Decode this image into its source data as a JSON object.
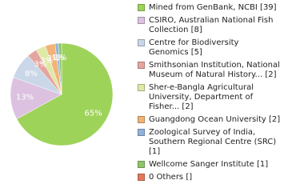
{
  "chart_data": {
    "type": "pie",
    "categories": [
      "Mined from GenBank, NCBI [39]",
      "CSIRO, Australian National Fish Collection [8]",
      "Centre for Biodiversity Genomics [5]",
      "Smithsonian Institution, National Museum of Natural History... [2]",
      "Sher-e-Bangla Agricultural University, Department of Fisher... [2]",
      "Guangdong Ocean University [2]",
      "Zoological Survey of India, Southern Regional Centre (SRC) [1]",
      "Wellcome Sanger Institute [1]",
      "0 Others []"
    ],
    "values": [
      65,
      13,
      8,
      3,
      3,
      3,
      1,
      1,
      0
    ],
    "value_labels": [
      "65%",
      "13%",
      "8%",
      "3%",
      "3%",
      "3%",
      "1%",
      "1%",
      null
    ],
    "colors": [
      "#9ed35a",
      "#dcc2e0",
      "#c9d7e8",
      "#e5a69f",
      "#dfe9a6",
      "#f1b377",
      "#92b2d9",
      "#8fc46a",
      "#e07a5b"
    ]
  }
}
